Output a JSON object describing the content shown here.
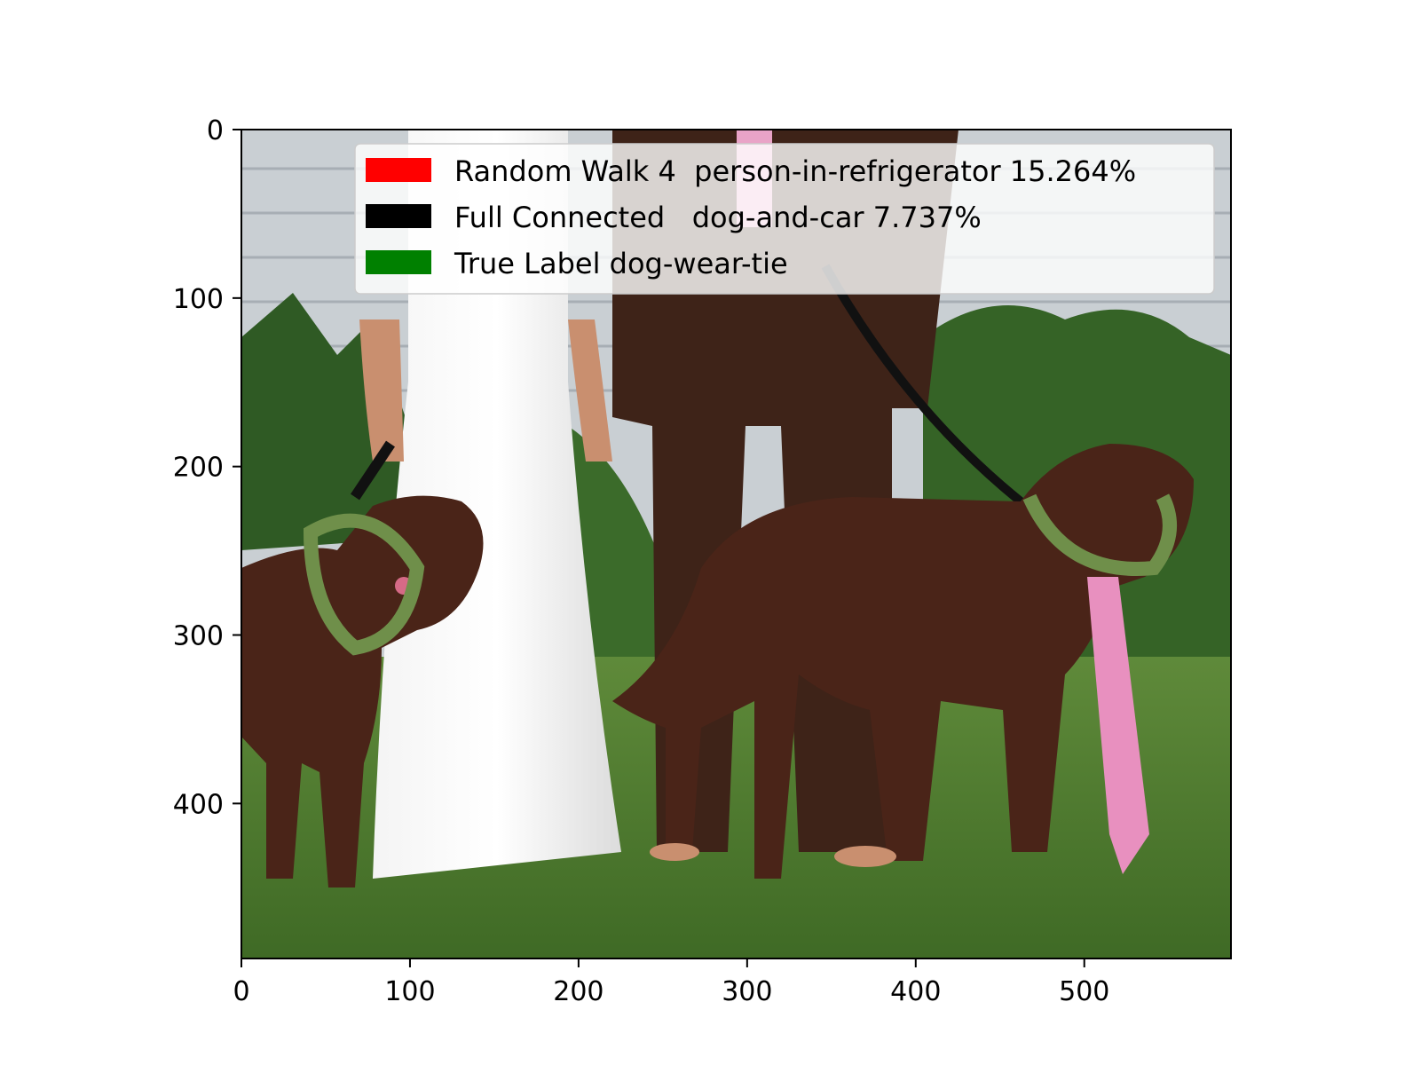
{
  "chart_data": {
    "type": "image",
    "xlim": [
      0,
      587
    ],
    "ylim": [
      492,
      0
    ],
    "x_ticks": [
      0,
      100,
      200,
      300,
      400,
      500
    ],
    "y_ticks": [
      0,
      100,
      200,
      300,
      400
    ],
    "legend": {
      "placement": "upper right",
      "entries": [
        {
          "label": "Random Walk 4  person-in-refrigerator 15.264%",
          "color": "#ff0000"
        },
        {
          "label": "Full Connected   dog-and-car 7.737%",
          "color": "#000000"
        },
        {
          "label": "True Label dog-wear-tie",
          "color": "#008000"
        }
      ]
    }
  }
}
